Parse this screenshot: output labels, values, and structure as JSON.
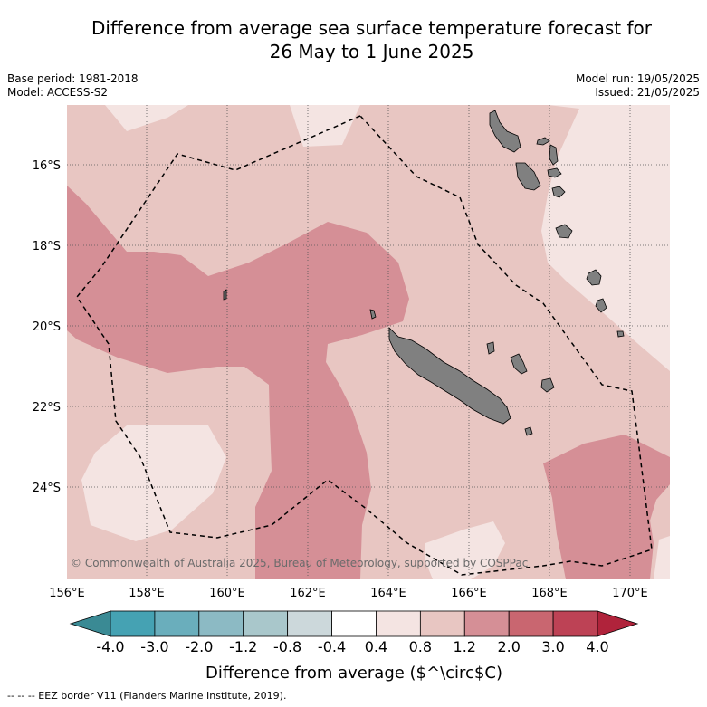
{
  "title_line1": "Difference from average sea surface temperature forecast for",
  "title_line2": "26 May to 1 June 2025",
  "meta_left": {
    "base_period": "Base period: 1981-2018",
    "model": "Model: ACCESS-S2"
  },
  "meta_right": {
    "model_run": "Model run: 19/05/2025",
    "issued": "Issued: 21/05/2025"
  },
  "map": {
    "lon_labels": [
      "156°E",
      "158°E",
      "160°E",
      "162°E",
      "164°E",
      "166°E",
      "168°E",
      "170°E"
    ],
    "lat_labels": [
      "16°S",
      "18°S",
      "20°S",
      "22°S",
      "24°S"
    ],
    "copyright": "© Commonwealth of Australia 2025, Bureau of Meteorology, supported by COSPPac",
    "colors": {
      "0.4-0.8": "#f4e4e2",
      "0.8-1.2": "#e8c6c2",
      "1.2-2.0": "#d58f96",
      "land": "#808080"
    }
  },
  "colorbar": {
    "labels": [
      "-4.0",
      "-3.0",
      "-2.0",
      "-1.2",
      "-0.8",
      "-0.4",
      "0.4",
      "0.8",
      "1.2",
      "2.0",
      "3.0",
      "4.0"
    ],
    "colors": [
      "#45a2b3",
      "#6aaebc",
      "#8cbac4",
      "#a9c7cb",
      "#ccd8db",
      "#ffffff",
      "#f4e4e2",
      "#e8c6c2",
      "#d58f96",
      "#c96670",
      "#bd4255"
    ],
    "under_color": "#3a8a94",
    "over_color": "#b0233b",
    "title": "Difference from average ($^\\circ$C)"
  },
  "footer": "--  --  -- EEZ border V11 (Flanders Marine Institute, 2019)."
}
